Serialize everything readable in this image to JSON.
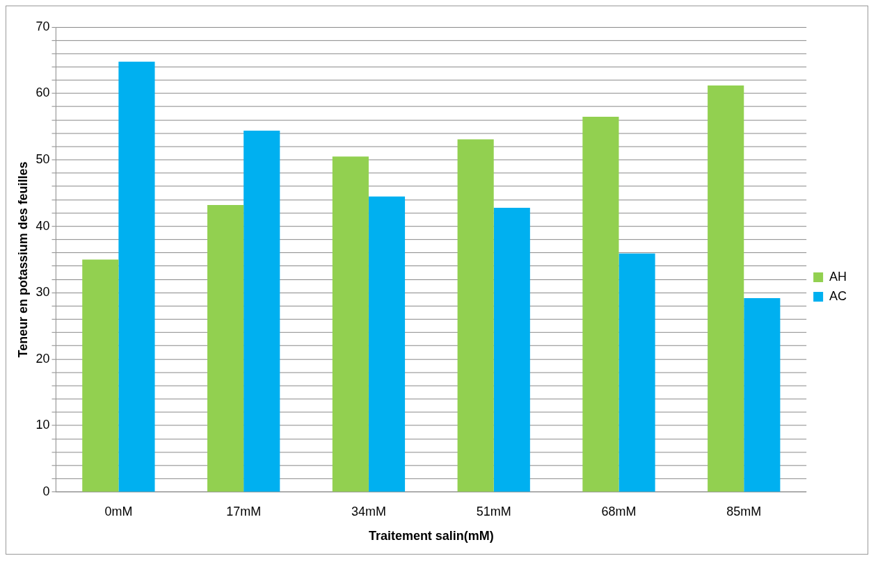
{
  "chart_data": {
    "type": "bar",
    "xlabel": "Traitement salin(mM)",
    "ylabel": "Teneur en potassium des feuilles",
    "categories": [
      "0mM",
      "17mM",
      "34mM",
      "51mM",
      "68mM",
      "85mM"
    ],
    "series": [
      {
        "name": "AH",
        "color": "#92d050",
        "values": [
          35,
          43.2,
          50.5,
          53.1,
          56.5,
          61.2
        ]
      },
      {
        "name": "AC",
        "color": "#00b0f0",
        "values": [
          64.8,
          54.4,
          44.5,
          42.8,
          35.9,
          29.2
        ]
      }
    ],
    "ylim": [
      0,
      70
    ],
    "yticks": [
      0,
      {
        "value": 2,
        "label": null
      },
      {
        "value": 4,
        "label": null
      },
      {
        "value": 6,
        "label": null
      },
      {
        "value": 8,
        "label": null
      },
      10,
      {
        "value": 12,
        "label": null
      },
      {
        "value": 14,
        "label": null
      },
      {
        "value": 16,
        "label": null
      },
      {
        "value": 18,
        "label": null
      },
      20,
      {
        "value": 22,
        "label": null
      },
      {
        "value": 24,
        "label": null
      },
      {
        "value": 26,
        "label": null
      },
      {
        "value": 28,
        "label": null
      },
      30,
      {
        "value": 32,
        "label": null
      },
      {
        "value": 34,
        "label": null
      },
      {
        "value": 36,
        "label": null
      },
      {
        "value": 38,
        "label": null
      },
      40,
      {
        "value": 42,
        "label": null
      },
      {
        "value": 44,
        "label": null
      },
      {
        "value": 46,
        "label": null
      },
      {
        "value": 48,
        "label": null
      },
      50,
      {
        "value": 52,
        "label": null
      },
      {
        "value": 54,
        "label": null
      },
      {
        "value": 56,
        "label": null
      },
      {
        "value": 58,
        "label": null
      },
      60,
      {
        "value": 62,
        "label": null
      },
      {
        "value": 64,
        "label": null
      },
      {
        "value": 66,
        "label": null
      },
      {
        "value": 68,
        "label": null
      },
      70
    ],
    "grid": "y",
    "legend": "right"
  }
}
